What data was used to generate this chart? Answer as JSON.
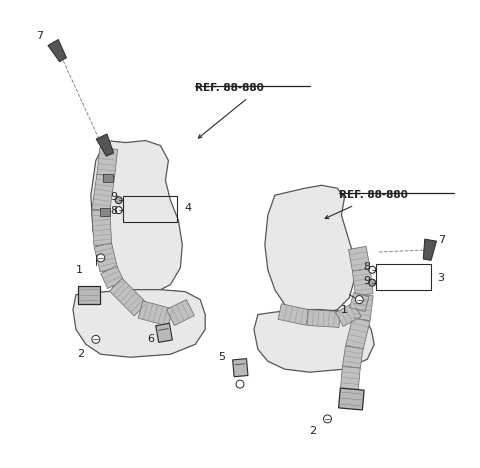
{
  "bg": "#ffffff",
  "lc": "#2a2a2a",
  "seat_fill": "#e8e8e8",
  "seat_edge": "#555555",
  "belt_fill": "#c0c0c0",
  "belt_edge": "#666666",
  "part_fill": "#b8b8b8",
  "ref_color": "#222222",
  "label_color": "#222222",
  "fig_w": 4.8,
  "fig_h": 4.68,
  "dpi": 100
}
